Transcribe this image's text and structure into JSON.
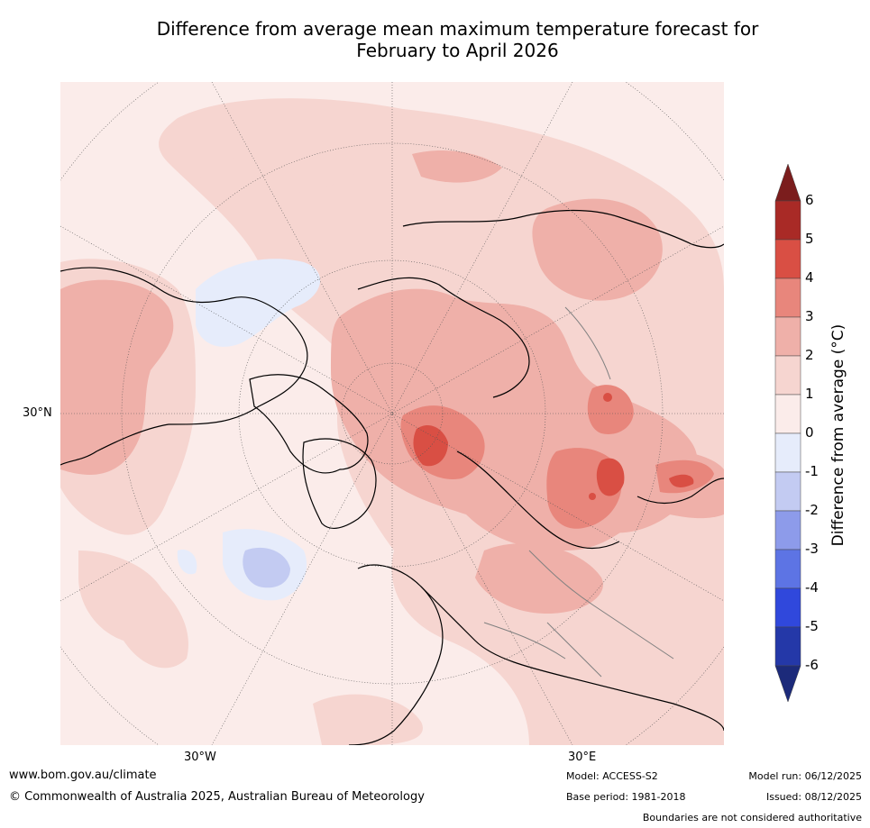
{
  "title": {
    "line1": "Difference from average mean maximum temperature forecast for",
    "line2": "February to April 2026"
  },
  "map": {
    "region": "Northern hemisphere polar projection",
    "graticule_labels": {
      "left_lat": "30°N",
      "bottom_lon_west": "30°W",
      "bottom_lon_east": "30°E"
    }
  },
  "colorbar": {
    "label": "Difference from average (°C)",
    "ticks": [
      "6",
      "5",
      "4",
      "3",
      "2",
      "1",
      "0",
      "-1",
      "-2",
      "-3",
      "-4",
      "-5",
      "-6"
    ],
    "colors": {
      "above_max": "#7b1d1d",
      "5_to_6": "#a92a26",
      "4_to_5": "#d94f44",
      "3_to_4": "#e8867c",
      "2_to_3": "#efb0a9",
      "1_to_2": "#f6d5d0",
      "0_to_1": "#fbecea",
      "m1_to_0": "#e6ecfb",
      "m2_to_m1": "#c3cbf2",
      "m3_to_m2": "#8d9bea",
      "m4_to_m3": "#5d74e4",
      "m5_to_m4": "#3048dc",
      "m6_to_m5": "#2438a8",
      "below_min": "#1c2a7a"
    }
  },
  "footer": {
    "url": "www.bom.gov.au/climate",
    "copyright": "© Commonwealth of Australia 2025, Australian Bureau of Meteorology",
    "model": "Model: ACCESS-S2",
    "base_period": "Base period: 1981-2018",
    "model_run": "Model run: 06/12/2025",
    "issued": "Issued: 08/12/2025",
    "disclaimer": "Boundaries are not considered authoritative"
  }
}
